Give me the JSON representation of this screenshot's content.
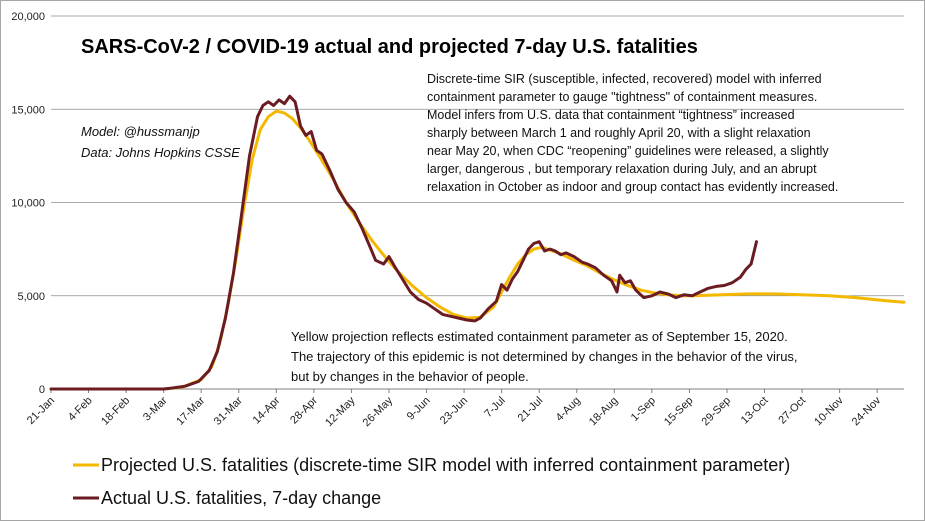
{
  "chart_data": {
    "type": "line",
    "title": "SARS-CoV-2  / COVID-19 actual and projected 7-day U.S. fatalities",
    "credits": [
      "Model: @hussmanjp",
      "Data: Johns Hopkins CSSE"
    ],
    "annotation_top": [
      "Discrete-time SIR (susceptible, infected, recovered) model with inferred",
      "containment parameter to gauge \"tightness\" of containment measures.",
      "Model infers from U.S. data that containment  “tightness” increased",
      "sharply between March 1 and roughly April 20, with a slight relaxation",
      "near May 20,  when CDC “reopening” guidelines were released, a slightly",
      "larger, dangerous , but temporary relaxation during July, and an abrupt",
      "relaxation in October as indoor and group contact has evidently increased."
    ],
    "annotation_bottom": [
      "Yellow  projection  reflects estimated containment parameter as of September 15, 2020.",
      "The trajectory of this epidemic is not determined by changes in the behavior of the virus,",
      "but by changes in the behavior of people."
    ],
    "x_tick_labels": [
      "21-Jan",
      "4-Feb",
      "18-Feb",
      "3-Mar",
      "17-Mar",
      "31-Mar",
      "14-Apr",
      "28-Apr",
      "12-May",
      "26-May",
      "9-Jun",
      "23-Jun",
      "7-Jul",
      "21-Jul",
      "4-Aug",
      "18-Aug",
      "1-Sep",
      "15-Sep",
      "29-Sep",
      "13-Oct",
      "27-Oct",
      "10-Nov",
      "24-Nov"
    ],
    "y_tick_labels": [
      "0",
      "5,000",
      "10,000",
      "15,000",
      "20,000"
    ],
    "ylim": [
      0,
      20000
    ],
    "xlim_days": [
      0,
      318
    ],
    "grid": "horizontal",
    "legend_position": "bottom",
    "series": [
      {
        "name": "Projected U.S. fatalities (discrete-time SIR model with inferred containment parameter)",
        "color": "#f5b800",
        "points": [
          [
            0,
            0
          ],
          [
            28,
            0
          ],
          [
            42,
            0
          ],
          [
            49,
            100
          ],
          [
            56,
            500
          ],
          [
            60,
            1200
          ],
          [
            63,
            2500
          ],
          [
            66,
            4500
          ],
          [
            69,
            7000
          ],
          [
            72,
            9800
          ],
          [
            75,
            12300
          ],
          [
            78,
            13900
          ],
          [
            81,
            14600
          ],
          [
            84,
            14900
          ],
          [
            87,
            14800
          ],
          [
            90,
            14500
          ],
          [
            93,
            14000
          ],
          [
            96,
            13400
          ],
          [
            100,
            12500
          ],
          [
            105,
            11300
          ],
          [
            110,
            10000
          ],
          [
            115,
            8900
          ],
          [
            120,
            7900
          ],
          [
            125,
            7000
          ],
          [
            130,
            6200
          ],
          [
            135,
            5500
          ],
          [
            140,
            4900
          ],
          [
            145,
            4400
          ],
          [
            150,
            4000
          ],
          [
            155,
            3800
          ],
          [
            160,
            3850
          ],
          [
            165,
            4400
          ],
          [
            168,
            5200
          ],
          [
            171,
            6000
          ],
          [
            174,
            6700
          ],
          [
            177,
            7200
          ],
          [
            180,
            7500
          ],
          [
            183,
            7600
          ],
          [
            186,
            7450
          ],
          [
            190,
            7250
          ],
          [
            195,
            6900
          ],
          [
            200,
            6600
          ],
          [
            205,
            6200
          ],
          [
            210,
            5850
          ],
          [
            215,
            5550
          ],
          [
            220,
            5300
          ],
          [
            225,
            5150
          ],
          [
            230,
            5050
          ],
          [
            235,
            5000
          ],
          [
            240,
            5000
          ],
          [
            250,
            5050
          ],
          [
            260,
            5100
          ],
          [
            270,
            5100
          ],
          [
            280,
            5050
          ],
          [
            290,
            5000
          ],
          [
            300,
            4900
          ],
          [
            310,
            4750
          ],
          [
            318,
            4650
          ]
        ]
      },
      {
        "name": "Actual U.S. fatalities, 7-day change",
        "color": "#6b1c22",
        "points": [
          [
            0,
            0
          ],
          [
            42,
            0
          ],
          [
            45,
            50
          ],
          [
            50,
            150
          ],
          [
            55,
            400
          ],
          [
            59,
            1000
          ],
          [
            62,
            2000
          ],
          [
            65,
            3800
          ],
          [
            68,
            6200
          ],
          [
            71,
            9300
          ],
          [
            74,
            12500
          ],
          [
            77,
            14600
          ],
          [
            79,
            15200
          ],
          [
            81,
            15400
          ],
          [
            83,
            15200
          ],
          [
            85,
            15500
          ],
          [
            87,
            15300
          ],
          [
            89,
            15700
          ],
          [
            91,
            15400
          ],
          [
            93,
            14100
          ],
          [
            95,
            13600
          ],
          [
            97,
            13800
          ],
          [
            99,
            12800
          ],
          [
            101,
            12600
          ],
          [
            104,
            11700
          ],
          [
            107,
            10700
          ],
          [
            110,
            10000
          ],
          [
            113,
            9500
          ],
          [
            116,
            8600
          ],
          [
            119,
            7600
          ],
          [
            121,
            6900
          ],
          [
            124,
            6700
          ],
          [
            126,
            7100
          ],
          [
            128,
            6600
          ],
          [
            131,
            5900
          ],
          [
            134,
            5200
          ],
          [
            137,
            4800
          ],
          [
            140,
            4600
          ],
          [
            143,
            4300
          ],
          [
            146,
            4000
          ],
          [
            149,
            3900
          ],
          [
            152,
            3800
          ],
          [
            155,
            3700
          ],
          [
            158,
            3650
          ],
          [
            160,
            3800
          ],
          [
            163,
            4300
          ],
          [
            166,
            4700
          ],
          [
            168,
            5600
          ],
          [
            170,
            5300
          ],
          [
            172,
            5900
          ],
          [
            174,
            6300
          ],
          [
            176,
            6900
          ],
          [
            178,
            7500
          ],
          [
            180,
            7800
          ],
          [
            182,
            7900
          ],
          [
            184,
            7400
          ],
          [
            186,
            7500
          ],
          [
            188,
            7400
          ],
          [
            190,
            7200
          ],
          [
            192,
            7300
          ],
          [
            195,
            7100
          ],
          [
            198,
            6800
          ],
          [
            200,
            6700
          ],
          [
            203,
            6500
          ],
          [
            206,
            6100
          ],
          [
            209,
            5800
          ],
          [
            211,
            5200
          ],
          [
            212,
            6100
          ],
          [
            214,
            5700
          ],
          [
            216,
            5800
          ],
          [
            218,
            5300
          ],
          [
            221,
            4900
          ],
          [
            224,
            5000
          ],
          [
            227,
            5200
          ],
          [
            230,
            5100
          ],
          [
            233,
            4900
          ],
          [
            236,
            5050
          ],
          [
            239,
            5000
          ],
          [
            242,
            5200
          ],
          [
            245,
            5400
          ],
          [
            248,
            5500
          ],
          [
            251,
            5550
          ],
          [
            254,
            5700
          ],
          [
            257,
            6000
          ],
          [
            259,
            6400
          ],
          [
            261,
            6700
          ],
          [
            263,
            7900
          ]
        ]
      }
    ]
  }
}
